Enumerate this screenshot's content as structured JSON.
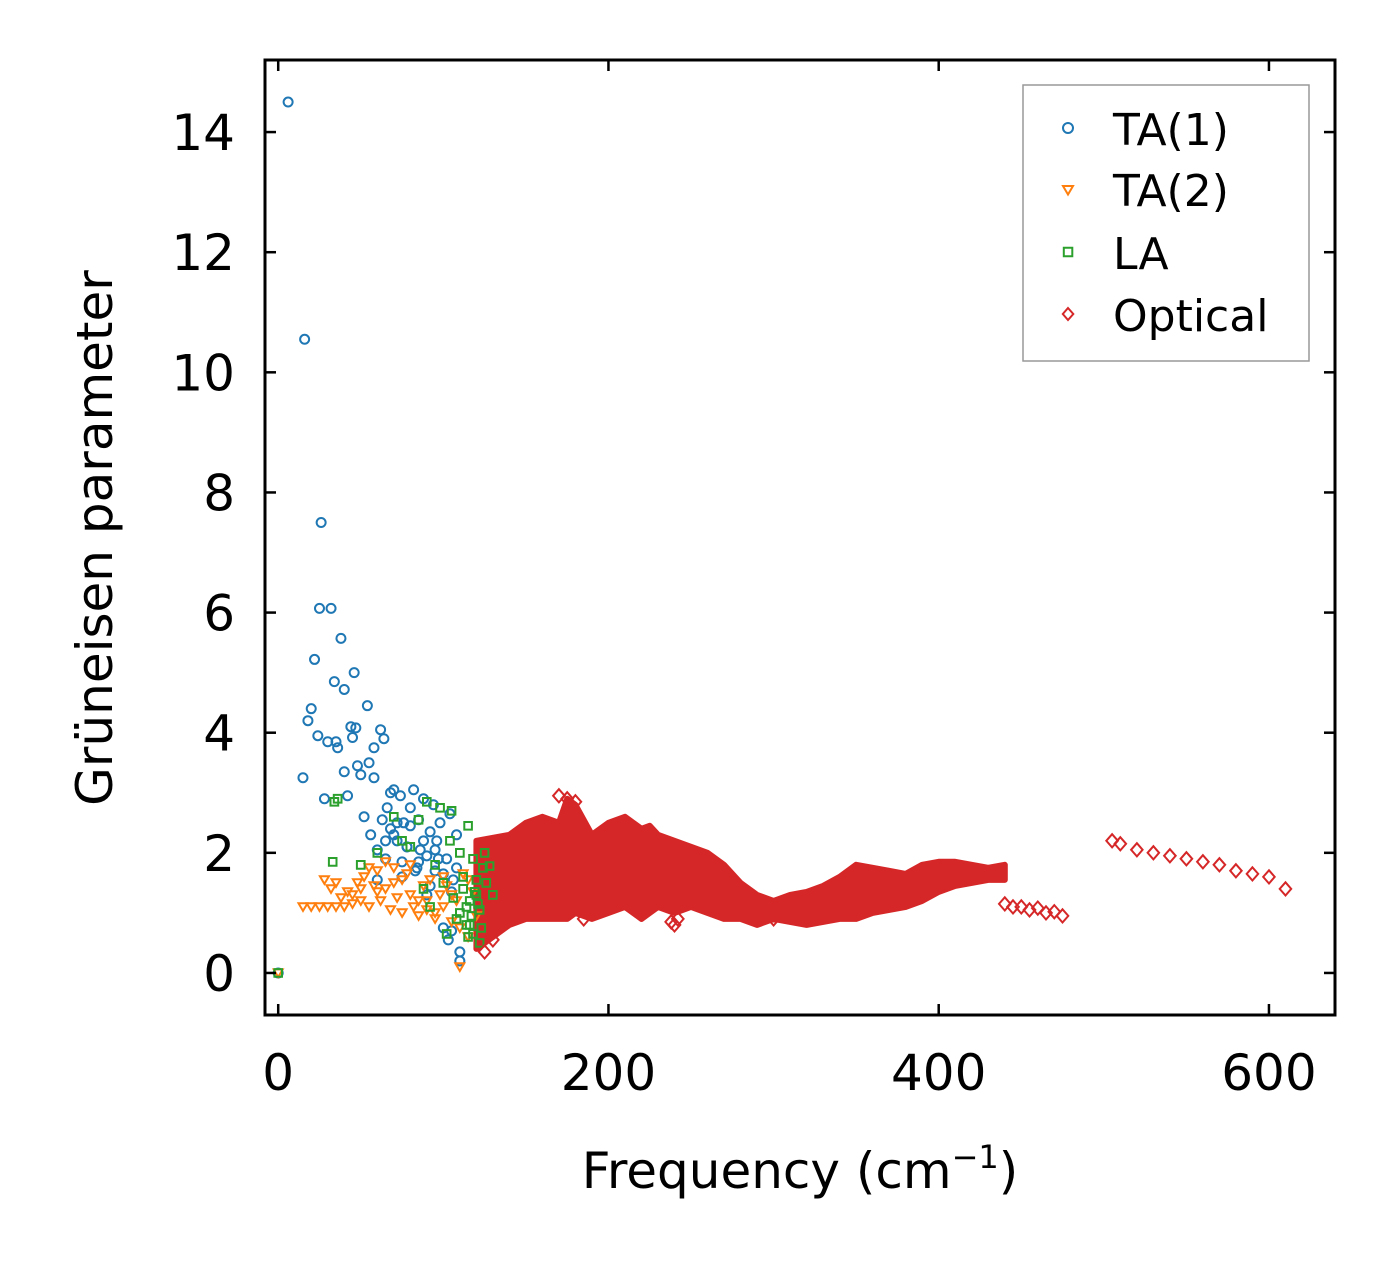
{
  "chart_data": {
    "type": "scatter",
    "title": "",
    "xlabel": "Frequency (cm",
    "xlabel_sup": "−1",
    "xlabel_close": ")",
    "ylabel": "Grüneisen parameter",
    "xlim": [
      -8,
      640
    ],
    "ylim": [
      -0.7,
      15.2
    ],
    "xticks": [
      0,
      200,
      400,
      600
    ],
    "yticks": [
      0,
      2,
      4,
      6,
      8,
      10,
      12,
      14
    ],
    "legend_position": "top-right",
    "series": [
      {
        "name": "TA(1)",
        "marker": "circle",
        "color": "#1f77b4",
        "x": [
          0,
          6,
          15,
          16,
          18,
          20,
          22,
          24,
          25,
          26,
          28,
          30,
          32,
          34,
          35,
          36,
          38,
          40,
          40,
          42,
          44,
          45,
          46,
          47,
          48,
          50,
          52,
          54,
          55,
          56,
          58,
          58,
          60,
          62,
          63,
          64,
          65,
          66,
          68,
          70,
          72,
          74,
          75,
          76,
          78,
          80,
          82,
          84,
          85,
          86,
          88,
          90,
          92,
          94,
          95,
          96,
          98,
          100,
          102,
          104,
          105,
          106,
          108,
          110,
          60,
          65,
          70,
          75,
          80,
          85,
          90,
          95,
          100,
          105,
          110,
          68,
          72,
          78,
          83,
          88,
          92,
          97,
          103,
          108
        ],
        "y": [
          0,
          14.5,
          3.25,
          10.55,
          4.2,
          4.4,
          5.22,
          3.95,
          6.07,
          7.5,
          2.9,
          3.85,
          6.07,
          4.85,
          3.85,
          3.75,
          5.57,
          4.72,
          3.35,
          2.95,
          4.1,
          3.92,
          5.0,
          4.08,
          3.45,
          3.3,
          2.6,
          4.45,
          3.5,
          2.3,
          3.75,
          3.25,
          2.05,
          4.05,
          2.55,
          3.9,
          2.2,
          2.75,
          2.4,
          3.05,
          2.2,
          2.95,
          1.85,
          2.5,
          2.1,
          2.75,
          3.05,
          1.75,
          2.55,
          2.05,
          2.9,
          1.95,
          2.35,
          2.8,
          1.7,
          2.2,
          2.5,
          0.75,
          1.9,
          2.65,
          0.7,
          1.55,
          2.3,
          0.2,
          1.55,
          1.9,
          2.3,
          1.6,
          2.45,
          1.85,
          1.3,
          2.05,
          1.65,
          1.35,
          0.35,
          3.0,
          2.5,
          2.1,
          1.7,
          2.2,
          1.45,
          1.9,
          0.55,
          1.75
        ]
      },
      {
        "name": "TA(2)",
        "marker": "triangle-down",
        "color": "#ff7f0e",
        "x": [
          0,
          15,
          20,
          25,
          28,
          30,
          32,
          35,
          38,
          40,
          42,
          45,
          48,
          50,
          52,
          55,
          58,
          60,
          62,
          65,
          68,
          70,
          72,
          75,
          78,
          80,
          82,
          85,
          88,
          90,
          92,
          95,
          98,
          100,
          102,
          105,
          108,
          110,
          112,
          115,
          118,
          120,
          55,
          65,
          75,
          85,
          95,
          105,
          115,
          60,
          70,
          80,
          90,
          100,
          110,
          45,
          50,
          35
        ],
        "y": [
          0,
          1.1,
          1.1,
          1.1,
          1.55,
          1.1,
          1.4,
          1.1,
          1.25,
          1.1,
          1.35,
          1.15,
          1.5,
          1.2,
          1.6,
          1.1,
          1.45,
          1.7,
          1.2,
          1.85,
          1.05,
          1.5,
          1.25,
          1.0,
          1.65,
          1.3,
          1.1,
          0.95,
          1.45,
          1.2,
          1.55,
          0.9,
          1.3,
          1.1,
          1.45,
          0.85,
          1.2,
          0.1,
          1.65,
          0.6,
          1.35,
          0.95,
          1.75,
          1.4,
          1.55,
          1.2,
          1.0,
          1.3,
          1.55,
          1.35,
          1.75,
          1.8,
          1.05,
          1.6,
          0.75,
          1.3,
          1.4,
          1.5
        ]
      },
      {
        "name": "LA",
        "marker": "square",
        "color": "#2ca02c",
        "x": [
          0,
          33,
          34,
          36,
          50,
          60,
          70,
          75,
          80,
          85,
          88,
          90,
          92,
          95,
          98,
          100,
          102,
          104,
          105,
          106,
          108,
          110,
          112,
          114,
          115,
          116,
          118,
          120,
          122,
          124,
          125,
          126,
          128,
          130,
          110,
          112,
          114,
          116,
          118,
          120,
          122,
          115,
          117,
          119,
          121,
          123
        ],
        "y": [
          0,
          1.85,
          2.85,
          2.9,
          1.8,
          2.0,
          2.6,
          2.2,
          2.1,
          2.55,
          1.4,
          2.85,
          1.1,
          1.8,
          2.75,
          1.5,
          0.65,
          2.2,
          2.7,
          1.25,
          0.9,
          2.0,
          1.6,
          1.1,
          2.45,
          0.8,
          1.9,
          1.3,
          0.5,
          1.75,
          2.0,
          1.5,
          1.78,
          1.3,
          1.0,
          1.4,
          0.8,
          1.2,
          0.65,
          1.55,
          1.05,
          0.6,
          0.95,
          1.35,
          1.15,
          0.75
        ]
      },
      {
        "name": "Optical",
        "marker": "diamond",
        "color": "#d62728",
        "band": {
          "x": [
            120,
            140,
            150,
            160,
            170,
            175,
            180,
            190,
            200,
            210,
            220,
            225,
            230,
            240,
            250,
            260,
            270,
            280,
            290,
            300,
            310,
            320,
            330,
            340,
            350,
            360,
            370,
            380,
            390,
            400,
            410,
            420,
            430,
            440
          ],
          "upper": [
            2.2,
            2.3,
            2.5,
            2.6,
            2.5,
            2.9,
            2.8,
            2.3,
            2.5,
            2.6,
            2.4,
            2.45,
            2.3,
            2.2,
            2.1,
            2.0,
            1.8,
            1.5,
            1.3,
            1.2,
            1.3,
            1.35,
            1.45,
            1.6,
            1.8,
            1.75,
            1.7,
            1.65,
            1.8,
            1.85,
            1.85,
            1.8,
            1.75,
            1.8
          ],
          "lower": [
            0.4,
            0.8,
            0.9,
            0.9,
            0.9,
            0.9,
            1.0,
            0.9,
            1.0,
            1.1,
            0.9,
            1.0,
            1.1,
            1.0,
            1.1,
            1.0,
            0.9,
            0.9,
            0.8,
            0.9,
            0.85,
            0.8,
            0.85,
            0.9,
            0.9,
            1.0,
            1.05,
            1.1,
            1.2,
            1.35,
            1.45,
            1.5,
            1.55,
            1.55
          ]
        },
        "x": [
          505,
          510,
          520,
          530,
          540,
          550,
          560,
          570,
          580,
          590,
          600,
          610,
          440,
          445,
          450,
          455,
          460,
          465,
          470,
          475,
          125,
          130,
          170,
          175,
          180,
          240,
          238,
          242,
          185,
          190,
          295,
          300
        ],
        "y": [
          2.2,
          2.15,
          2.05,
          2.0,
          1.95,
          1.9,
          1.85,
          1.8,
          1.7,
          1.65,
          1.6,
          1.4,
          1.15,
          1.1,
          1.1,
          1.05,
          1.08,
          1.0,
          1.02,
          0.95,
          0.35,
          0.55,
          2.95,
          2.9,
          2.85,
          0.8,
          0.85,
          0.9,
          0.9,
          1.0,
          1.0,
          0.9
        ]
      }
    ]
  }
}
